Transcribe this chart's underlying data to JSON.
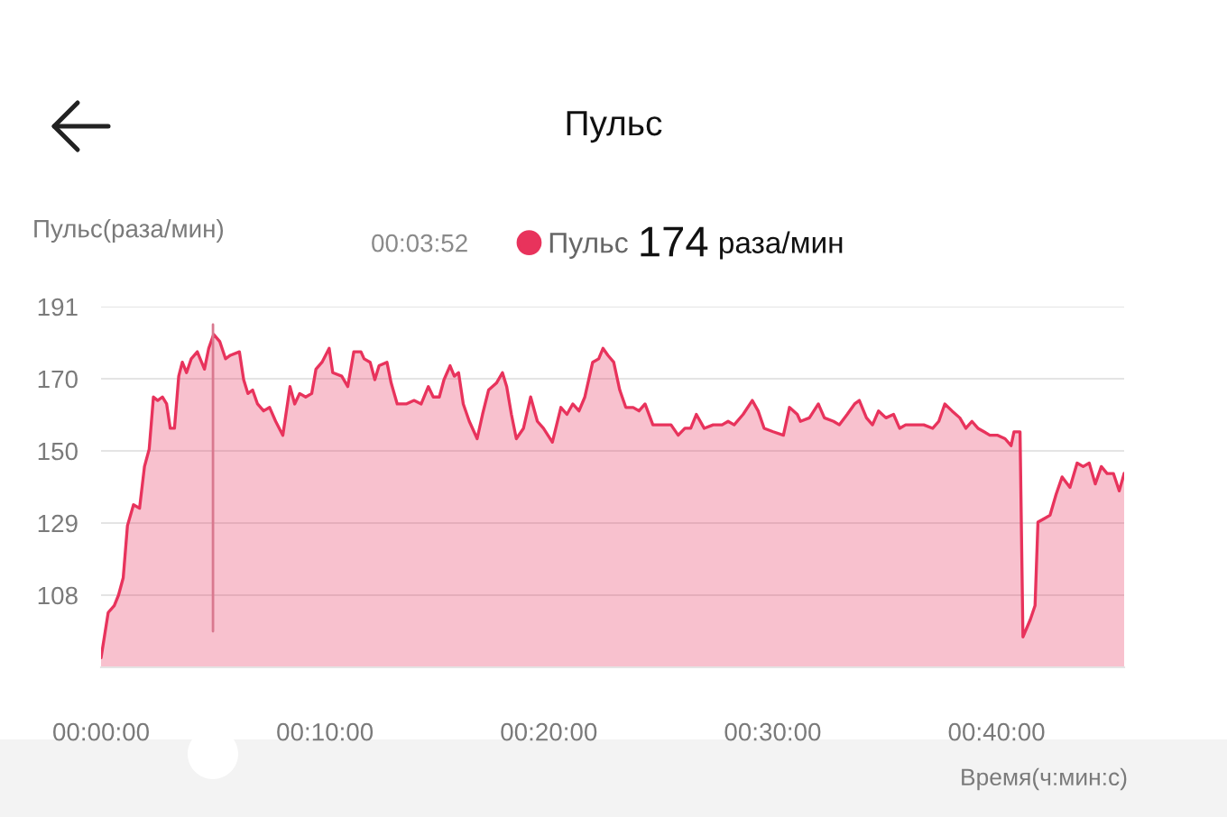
{
  "chart_data": {
    "type": "area",
    "title": "Пульс",
    "ylabel": "Пульс(раза/мин)",
    "xlabel": "Время(ч:мин:с)",
    "annotations": [
      "00:03:52",
      "174",
      "раза/мин"
    ],
    "xlim": [
      0,
      45.7
    ],
    "xticks": [
      {
        "value": 0,
        "label": "00:00:00"
      },
      {
        "value": 10,
        "label": "00:10:00"
      },
      {
        "value": 20,
        "label": "00:20:00"
      },
      {
        "value": 30,
        "label": "00:30:00"
      },
      {
        "value": 40,
        "label": "00:40:00"
      }
    ],
    "ylim": [
      87.25,
      191
    ],
    "yticks": [
      {
        "value": 87.25,
        "label": null
      },
      108,
      {
        "value": 128.75,
        "label": "129"
      },
      {
        "value": 149.5,
        "label": "150"
      },
      {
        "value": 170.25,
        "label": "170"
      },
      191
    ],
    "grid": "y",
    "legend": "top",
    "ref_lines": [
      {
        "axis": "x",
        "value": 5.0,
        "color": "#d9798f"
      }
    ],
    "series": [
      {
        "name": "Пульс",
        "color": "#e8335c",
        "x": [
          0,
          0.32,
          0.59,
          0.78,
          0.99,
          1.18,
          1.45,
          1.72,
          1.94,
          2.15,
          2.34,
          2.53,
          2.74,
          2.93,
          3.09,
          3.28,
          3.47,
          3.63,
          3.82,
          4.03,
          4.3,
          4.62,
          4.81,
          5.03,
          5.3,
          5.56,
          5.78,
          6.18,
          6.37,
          6.56,
          6.77,
          6.99,
          7.26,
          7.53,
          7.8,
          8.12,
          8.44,
          8.65,
          8.87,
          9.14,
          9.41,
          9.6,
          9.87,
          10.19,
          10.35,
          10.75,
          11.02,
          11.29,
          11.61,
          11.75,
          12.02,
          12.23,
          12.42,
          12.77,
          12.96,
          13.23,
          13.63,
          13.98,
          14.3,
          14.62,
          14.84,
          15.11,
          15.32,
          15.59,
          15.78,
          15.97,
          16.18,
          16.45,
          16.8,
          17.04,
          17.31,
          17.66,
          17.93,
          18.12,
          18.33,
          18.55,
          18.87,
          19.19,
          19.49,
          19.76,
          20.16,
          20.54,
          20.81,
          21.07,
          21.35,
          21.61,
          21.96,
          22.23,
          22.42,
          22.64,
          22.9,
          23.17,
          23.44,
          23.77,
          24.03,
          24.3,
          24.65,
          25.06,
          25.46,
          25.78,
          26.08,
          26.34,
          26.59,
          26.94,
          27.34,
          27.74,
          28.01,
          28.28,
          28.68,
          29.09,
          29.35,
          29.62,
          30.02,
          30.48,
          30.75,
          31.1,
          31.24,
          31.64,
          32.04,
          32.31,
          32.72,
          32.98,
          33.33,
          33.66,
          33.87,
          34.19,
          34.46,
          34.73,
          35.06,
          35.4,
          35.67,
          35.94,
          36.35,
          36.75,
          37.15,
          37.42,
          37.69,
          38.01,
          38.36,
          38.63,
          38.9,
          39.17,
          39.44,
          39.7,
          40.05,
          40.38,
          40.65,
          40.78,
          41.05,
          41.18,
          41.51,
          41.72,
          41.85,
          42.12,
          42.39,
          42.66,
          42.93,
          43.28,
          43.6,
          43.87,
          44.14,
          44.41,
          44.68,
          44.94,
          45.22,
          45.48,
          45.7
        ],
        "values": [
          90,
          103,
          105,
          108,
          113,
          128,
          134,
          133,
          145,
          150,
          165,
          164,
          165,
          163,
          156,
          156,
          171,
          175,
          172,
          176,
          178,
          173,
          179,
          183,
          181,
          176,
          177,
          178,
          170,
          166,
          167,
          163,
          161,
          162,
          158,
          154,
          168,
          163,
          166,
          165,
          166,
          173,
          175,
          179,
          172,
          171,
          168,
          178,
          178,
          176,
          175,
          170,
          174,
          175,
          169,
          163,
          163,
          164,
          163,
          168,
          165,
          165,
          170,
          174,
          171,
          172,
          163,
          158,
          153,
          160,
          167,
          169,
          172,
          168,
          160,
          153,
          156,
          165,
          158,
          156,
          152,
          162,
          160,
          163,
          161,
          165,
          175,
          176,
          179,
          177,
          175,
          167,
          162,
          162,
          161,
          163,
          157,
          157,
          157,
          154,
          156,
          156,
          160,
          156,
          157,
          157,
          158,
          157,
          160,
          164,
          161,
          156,
          155,
          154,
          162,
          160,
          158,
          159,
          163,
          159,
          158,
          157,
          160,
          163,
          164,
          159,
          157,
          161,
          159,
          160,
          156,
          157,
          157,
          157,
          156,
          158,
          163,
          161,
          159,
          156,
          158,
          156,
          155,
          154,
          154,
          153,
          151,
          155,
          155,
          96,
          101,
          105,
          129,
          130,
          131,
          137,
          142,
          139,
          146,
          145,
          146,
          140,
          145,
          143,
          143,
          138,
          143
        ]
      }
    ]
  }
}
